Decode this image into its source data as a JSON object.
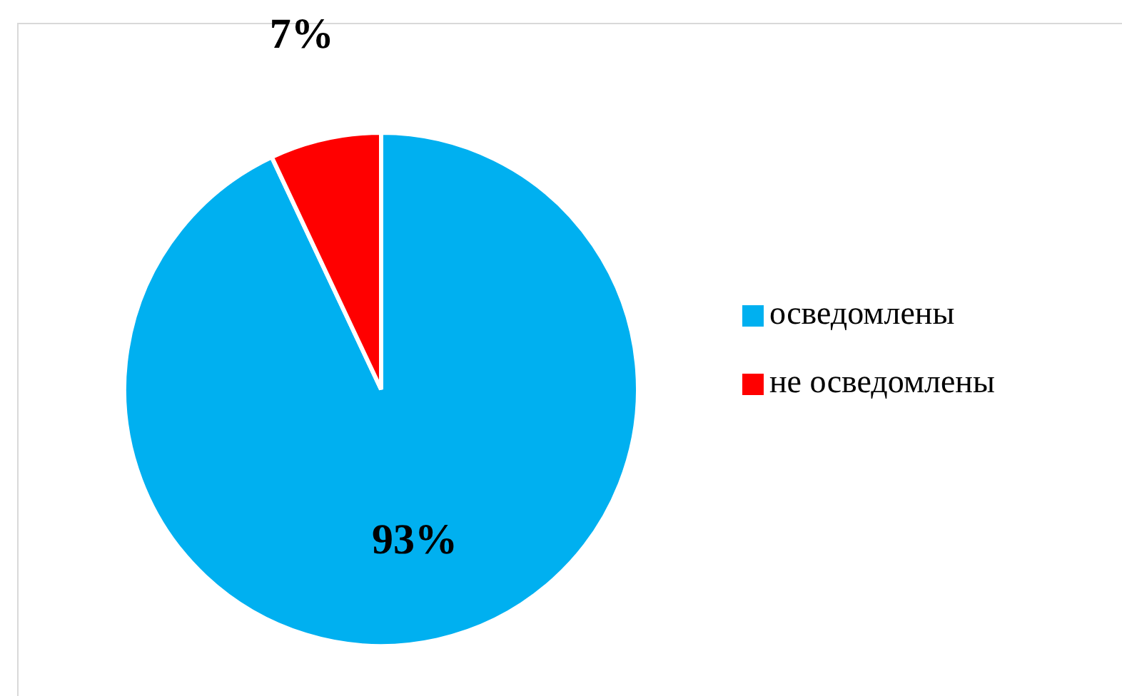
{
  "chart_data": {
    "type": "pie",
    "categories": [
      "осведомлены",
      "не осведомлены"
    ],
    "values": [
      93,
      7
    ],
    "colors": [
      "#00b0f0",
      "#ff0000"
    ],
    "value_labels": [
      "93%",
      "7%"
    ],
    "legend": "right"
  }
}
